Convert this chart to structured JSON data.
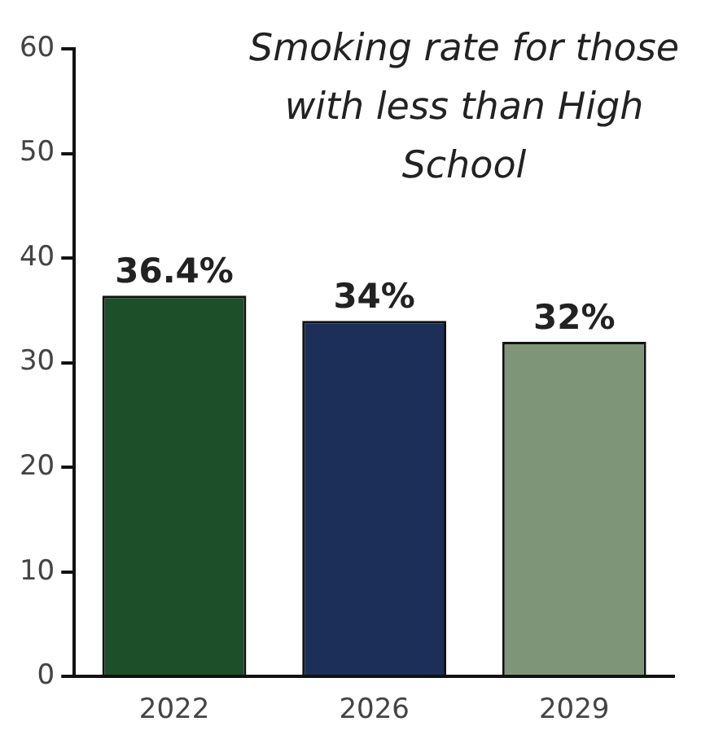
{
  "chart_data": {
    "type": "bar",
    "title": "Smoking rate for those with less than High School",
    "categories": [
      "2022",
      "2026",
      "2029"
    ],
    "values": [
      36.4,
      34,
      32
    ],
    "value_labels": [
      "36.4%",
      "34%",
      "32%"
    ],
    "colors": [
      "#1d4f28",
      "#1b2f58",
      "#7f9578"
    ],
    "ylim": [
      0,
      60
    ],
    "yticks": [
      0,
      10,
      20,
      30,
      40,
      50,
      60
    ]
  }
}
